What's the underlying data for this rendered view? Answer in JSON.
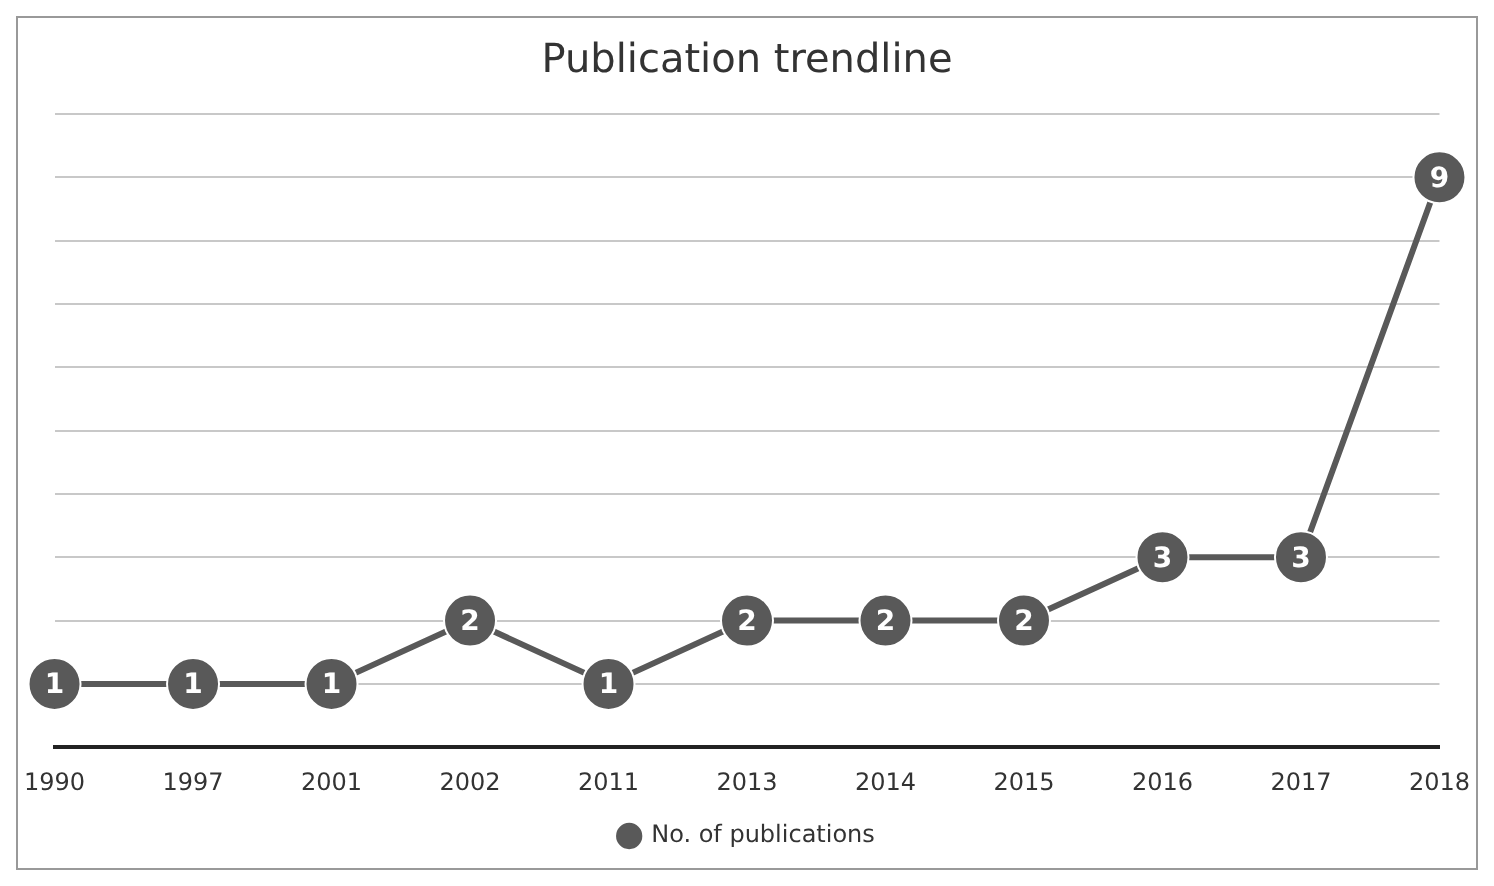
{
  "chart_data": {
    "type": "line",
    "title": "Publication trendline",
    "categories": [
      "1990",
      "1997",
      "2001",
      "2002",
      "2011",
      "2013",
      "2014",
      "2015",
      "2016",
      "2017",
      "2018"
    ],
    "series": [
      {
        "name": "No. of publications",
        "color": "#595959",
        "values": [
          1,
          1,
          1,
          2,
          1,
          2,
          2,
          2,
          3,
          3,
          9
        ]
      }
    ],
    "ylim": [
      0,
      10
    ],
    "yticks": [
      {
        "value": 0,
        "label": null
      },
      {
        "value": 1,
        "label": null
      },
      {
        "value": 2,
        "label": null
      },
      {
        "value": 3,
        "label": null
      },
      {
        "value": 4,
        "label": null
      },
      {
        "value": 5,
        "label": null
      },
      {
        "value": 6,
        "label": null
      },
      {
        "value": 7,
        "label": null
      },
      {
        "value": 8,
        "label": null
      },
      {
        "value": 9,
        "label": null
      },
      {
        "value": 10,
        "label": null
      }
    ],
    "grid": "y",
    "tick_labels": "x",
    "legend": "bottom",
    "marker": "circle",
    "line_style": "solid",
    "data_labels": true
  }
}
